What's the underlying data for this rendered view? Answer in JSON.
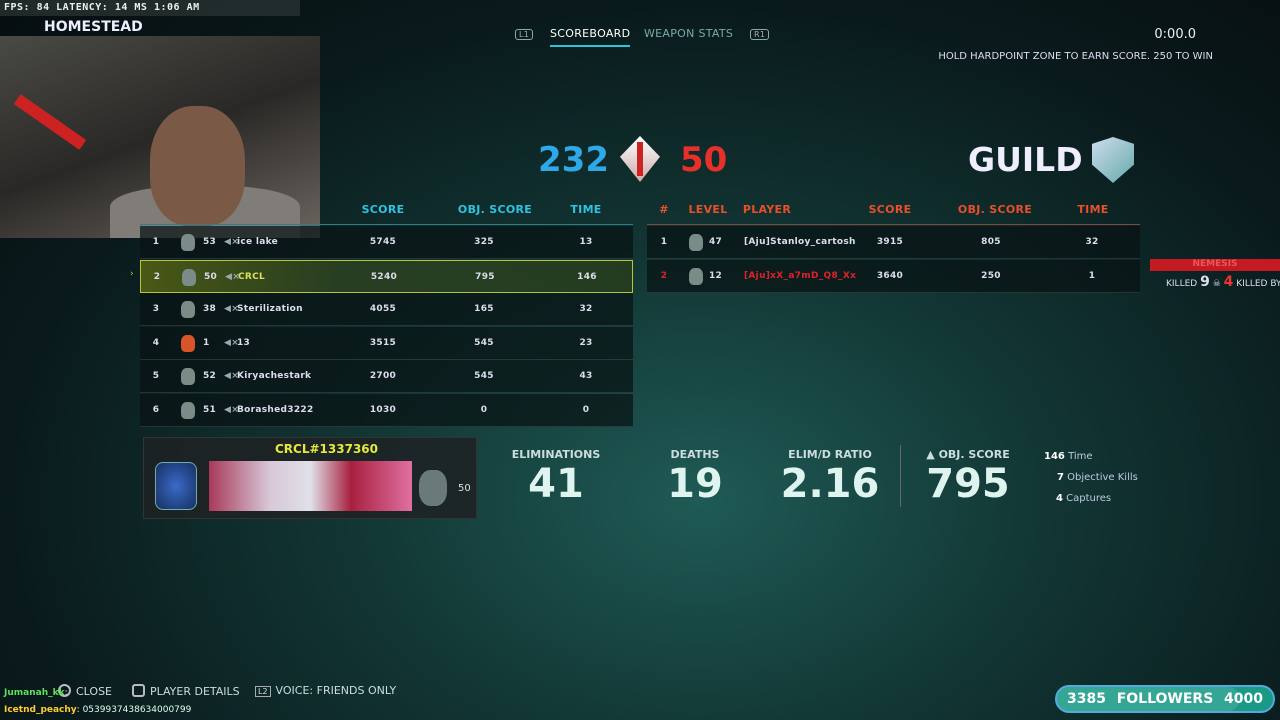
{
  "overlay": {
    "stats": "FPS:  84  LATENCY: 14 MS  1:06 AM",
    "map": "HOMESTEAD"
  },
  "tabs": {
    "left_key": "L1",
    "right_key": "R1",
    "items": [
      {
        "label": "SCOREBOARD",
        "active": true
      },
      {
        "label": "WEAPON STATS",
        "active": false
      }
    ]
  },
  "match": {
    "timer": "0:00.0",
    "hint": "HOLD HARDPOINT ZONE TO EARN SCORE. 250 TO WIN",
    "friendly_score": "232",
    "enemy_score": "50",
    "enemy_team": "GUILD"
  },
  "left_table": {
    "headers": [
      "SCORE",
      "OBJ. SCORE",
      "TIME"
    ],
    "rows": [
      {
        "rank": "1",
        "level": "53",
        "name": "ice lake",
        "score": "5745",
        "obj": "325",
        "time": "13"
      },
      {
        "rank": "2",
        "level": "50",
        "name": "CRCL",
        "score": "5240",
        "obj": "795",
        "time": "146",
        "selected": true
      },
      {
        "rank": "3",
        "level": "38",
        "name": "Sterilization",
        "score": "4055",
        "obj": "165",
        "time": "32"
      },
      {
        "rank": "4",
        "level": "1",
        "name": "13",
        "score": "3515",
        "obj": "545",
        "time": "23"
      },
      {
        "rank": "5",
        "level": "52",
        "name": "Kiryachestark",
        "score": "2700",
        "obj": "545",
        "time": "43"
      },
      {
        "rank": "6",
        "level": "51",
        "name": "Borashed3222",
        "score": "1030",
        "obj": "0",
        "time": "0"
      }
    ]
  },
  "right_table": {
    "headers": [
      "#",
      "LEVEL",
      "PLAYER",
      "SCORE",
      "OBJ. SCORE",
      "TIME"
    ],
    "rows": [
      {
        "rank": "1",
        "level": "47",
        "name": "[Aju]Stanloy_cartosh",
        "score": "3915",
        "obj": "805",
        "time": "32"
      },
      {
        "rank": "2",
        "level": "12",
        "name": "[Aju]xX_a7mD_Q8_Xx",
        "score": "3640",
        "obj": "250",
        "time": "1"
      }
    ]
  },
  "nemesis": {
    "label": "NEMESIS",
    "killed_label": "KILLED",
    "killed": "9",
    "killed_by": "4",
    "killed_by_label": "KILLED BY"
  },
  "player_card": {
    "tag": "CRCL#1337360",
    "level": "50"
  },
  "stats": [
    {
      "label": "ELIMINATIONS",
      "value": "41"
    },
    {
      "label": "DEATHS",
      "value": "19"
    },
    {
      "label": "ELIM/D RATIO",
      "value": "2.16"
    },
    {
      "label": "OBJ. SCORE",
      "value": "795"
    }
  ],
  "side_stats": [
    {
      "value": "146",
      "label": "Time"
    },
    {
      "value": "7",
      "label": "Objective Kills"
    },
    {
      "value": "4",
      "label": "Captures"
    }
  ],
  "footer": {
    "close": "CLOSE",
    "details": "PLAYER DETAILS",
    "voice": "VOICE: FRIENDS ONLY",
    "voice_key": "L2"
  },
  "chat": [
    {
      "user": "Jumanah_kk",
      "msg": ":"
    },
    {
      "user": "Icetnd_peachy",
      "msg": ": 0539937438634000799"
    }
  ],
  "followers": {
    "current": "3385",
    "label": "FOLLOWERS",
    "goal": "4000",
    "progress": 0.846
  },
  "colors": {
    "friendly": "#2ea8e8",
    "enemy": "#e8302a",
    "selected": "#b8c43a"
  }
}
